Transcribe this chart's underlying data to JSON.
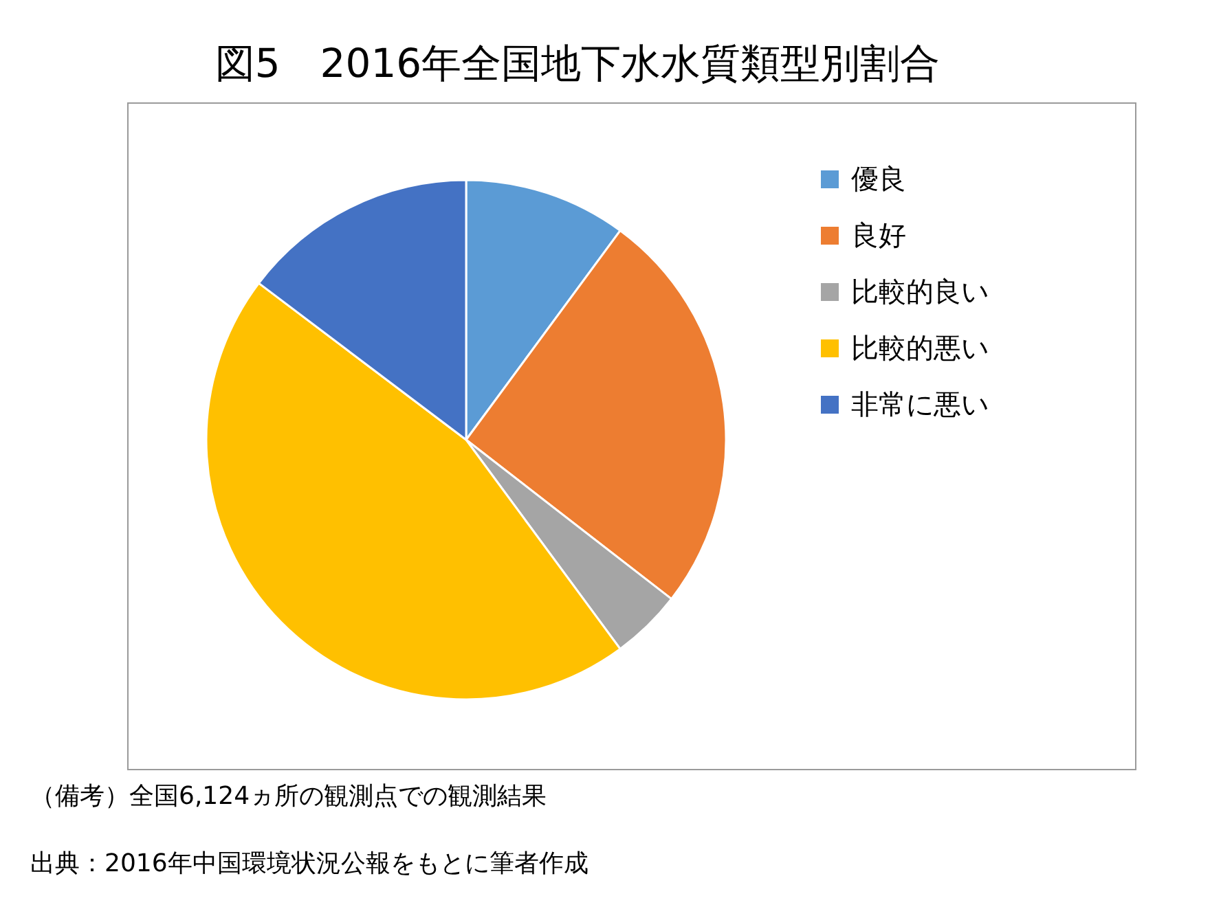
{
  "chart_data": {
    "type": "pie",
    "title": "図5　2016年全国地下水水質類型別割合",
    "categories": [
      "優良",
      "良好",
      "比較的良い",
      "比較的悪い",
      "非常に悪い"
    ],
    "values": [
      10.1,
      25.4,
      4.4,
      45.4,
      14.7
    ],
    "colors": [
      "#5b9bd5",
      "#ed7d31",
      "#a5a5a5",
      "#ffc000",
      "#4472c4"
    ],
    "legend": "right",
    "annotations": [
      "（備考）全国6,124ヵ所の観測点での観測結果",
      "出典：2016年中国環境状況公報をもとに筆者作成"
    ]
  }
}
